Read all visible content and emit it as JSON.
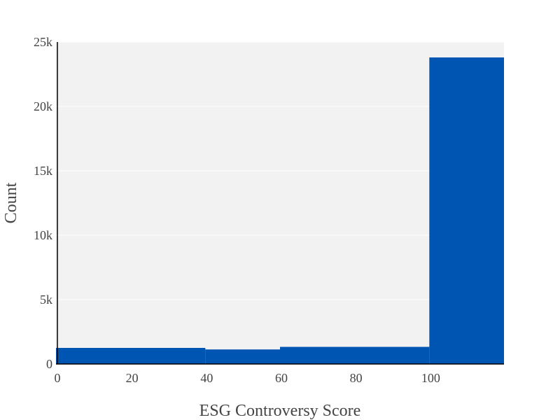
{
  "chart_data": {
    "type": "bar",
    "title": "",
    "xlabel": "ESG Controversy Score",
    "ylabel": "Count",
    "bins": [
      {
        "x0": 0,
        "x1": 40,
        "count": 1250
      },
      {
        "x0": 40,
        "x1": 60,
        "count": 1130
      },
      {
        "x0": 60,
        "x1": 100,
        "count": 1330
      },
      {
        "x0": 100,
        "x1": 120,
        "count": 23800
      }
    ],
    "xlim": [
      0,
      120
    ],
    "ylim": [
      0,
      25000
    ],
    "x_ticks": [
      {
        "value": 0,
        "label": "0"
      },
      {
        "value": 20,
        "label": "20"
      },
      {
        "value": 40,
        "label": "40"
      },
      {
        "value": 60,
        "label": "60"
      },
      {
        "value": 80,
        "label": "80"
      },
      {
        "value": 100,
        "label": "100"
      }
    ],
    "y_ticks": [
      {
        "value": 0,
        "label": "0"
      },
      {
        "value": 5000,
        "label": "5k"
      },
      {
        "value": 10000,
        "label": "10k"
      },
      {
        "value": 15000,
        "label": "15k"
      },
      {
        "value": 20000,
        "label": "20k"
      },
      {
        "value": 25000,
        "label": "25k"
      }
    ],
    "grid": true,
    "legend": "none",
    "colors": {
      "bar": "#0055b3",
      "plot_background": "#f2f2f2",
      "gridline": "#ffffff",
      "axis_line": "#000000"
    }
  }
}
